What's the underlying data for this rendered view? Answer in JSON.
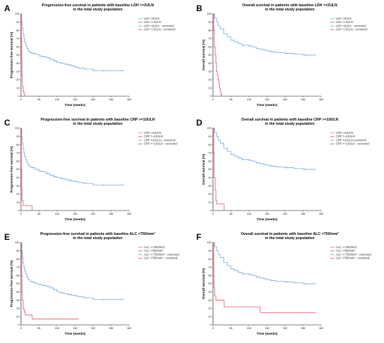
{
  "colors": {
    "blue": "#5b9bd5",
    "red": "#e8304a",
    "axis": "#000000"
  },
  "figure": {
    "x_ticks": [
      "0",
      "50",
      "100",
      "150",
      "200",
      "250",
      "300"
    ],
    "y_ticks": [
      "0",
      "10",
      "20",
      "30",
      "40",
      "50",
      "60",
      "70",
      "80",
      "90",
      "100"
    ]
  },
  "chart_data": [
    {
      "panel": "A",
      "type": "line",
      "title_lines": [
        "Progression-free survival in patients with baseline LDH >=2ULN",
        "in the total study population"
      ],
      "xlabel": "Time (weeks)",
      "ylabel": "Progression-free survival (%)",
      "xlim": [
        0,
        300
      ],
      "ylim": [
        0,
        100
      ],
      "legend": [
        "LDH <2ULN",
        "LDH >=2ULN",
        "LDH <2ULN - censored",
        "LDH >=2ULN - censored"
      ],
      "series": [
        {
          "name": "LDH <2ULN",
          "x": [
            0,
            2,
            4,
            6,
            8,
            10,
            13,
            16,
            20,
            25,
            30,
            40,
            50,
            60,
            70,
            80,
            90,
            100,
            110,
            120,
            130,
            140,
            150,
            160,
            175,
            200,
            225,
            250,
            275,
            285
          ],
          "y": [
            100,
            90,
            82,
            76,
            70,
            66,
            62,
            58,
            55,
            53,
            52,
            51,
            49,
            48,
            47,
            45,
            43,
            41,
            40,
            39,
            38,
            37,
            35,
            34,
            33,
            31,
            31,
            31,
            31,
            31
          ]
        },
        {
          "name": "LDH >=2ULN",
          "x": [
            0,
            1,
            2,
            3,
            4,
            6,
            8,
            10
          ],
          "y": [
            100,
            70,
            45,
            25,
            12,
            6,
            3,
            0
          ]
        }
      ]
    },
    {
      "panel": "B",
      "type": "line",
      "title_lines": [
        "Overall survival in patients with baseline LDH >=2ULN",
        "in the total study population"
      ],
      "xlabel": "Time (weeks)",
      "ylabel": "Overall survival (%)",
      "xlim": [
        0,
        300
      ],
      "ylim": [
        0,
        100
      ],
      "legend": [
        "LDH <2ULN",
        "LDH >=2ULN",
        "LDH <2ULN - censored",
        "LDH >=2ULN - censored"
      ],
      "series": [
        {
          "name": "LDH <2ULN",
          "x": [
            0,
            5,
            10,
            15,
            20,
            30,
            40,
            50,
            60,
            70,
            80,
            90,
            100,
            110,
            120,
            130,
            140,
            150,
            160,
            175,
            200,
            225,
            250,
            275,
            285
          ],
          "y": [
            100,
            95,
            90,
            85,
            82,
            76,
            72,
            68,
            66,
            64,
            62,
            62,
            61,
            60,
            58,
            57,
            56,
            55,
            54,
            53,
            52,
            51,
            50,
            50,
            50
          ]
        },
        {
          "name": "LDH >=2ULN",
          "x": [
            0,
            2,
            4,
            6,
            8,
            10,
            12,
            14,
            16,
            18,
            20,
            22,
            24
          ],
          "y": [
            100,
            80,
            60,
            50,
            40,
            30,
            25,
            20,
            15,
            10,
            6,
            2,
            0
          ]
        }
      ]
    },
    {
      "panel": "C",
      "type": "line",
      "title_lines": [
        "Progression-free survival in patients with baseline CRP >=10ULN",
        "in the total study population"
      ],
      "xlabel": "Time (weeks)",
      "ylabel": "Progression-free survival (%)",
      "xlim": [
        0,
        300
      ],
      "ylim": [
        0,
        100
      ],
      "legend": [
        "CRP <10ULN",
        "CRP >=10ULN",
        "CRP <10ULN - censored",
        "CRP >=10ULN - censored"
      ],
      "series": [
        {
          "name": "CRP <10ULN",
          "x": [
            0,
            2,
            4,
            6,
            8,
            10,
            13,
            16,
            20,
            25,
            30,
            40,
            50,
            60,
            70,
            80,
            90,
            100,
            110,
            120,
            130,
            140,
            150,
            160,
            175,
            200,
            225,
            250,
            275,
            285
          ],
          "y": [
            100,
            90,
            82,
            75,
            70,
            66,
            62,
            58,
            55,
            53,
            52,
            50,
            48,
            47,
            45,
            43,
            41,
            40,
            39,
            38,
            37,
            36,
            35,
            34,
            33,
            31,
            31,
            31,
            31,
            31
          ]
        },
        {
          "name": "CRP >=10ULN",
          "x": [
            0,
            1,
            2,
            3,
            6,
            30,
            31
          ],
          "y": [
            100,
            50,
            25,
            12,
            6,
            6,
            0
          ]
        }
      ]
    },
    {
      "panel": "D",
      "type": "line",
      "title_lines": [
        "Overall survival in patients with baseline CRP >=10ULN",
        "in the total study population"
      ],
      "xlabel": "Time (weeks)",
      "ylabel": "Overall survival (%)",
      "xlim": [
        0,
        300
      ],
      "ylim": [
        0,
        100
      ],
      "legend": [
        "CRP <10ULN",
        "CRP >=10ULN",
        "CRP <10ULN-censored",
        "CRP >=10ULN - censored"
      ],
      "series": [
        {
          "name": "CRP <10ULN",
          "x": [
            0,
            5,
            10,
            15,
            20,
            30,
            40,
            50,
            60,
            70,
            80,
            90,
            100,
            110,
            120,
            130,
            140,
            150,
            160,
            175,
            200,
            225,
            250,
            275,
            285
          ],
          "y": [
            100,
            95,
            90,
            85,
            82,
            76,
            72,
            68,
            66,
            64,
            62,
            62,
            61,
            60,
            58,
            57,
            56,
            55,
            54,
            53,
            52,
            51,
            50,
            50,
            50
          ]
        },
        {
          "name": "CRP >=10ULN",
          "x": [
            0,
            2,
            3,
            6,
            8,
            10,
            30,
            31
          ],
          "y": [
            100,
            70,
            40,
            25,
            12,
            8,
            8,
            0
          ]
        }
      ]
    },
    {
      "panel": "E",
      "type": "line",
      "title_lines": [
        "Progression-free survival in patients with baseline ALC <750/mm³",
        "in the total study population"
      ],
      "xlabel": "Time (weeks)",
      "ylabel": "Progression-free survival (%)",
      "xlim": [
        0,
        300
      ],
      "ylim": [
        0,
        100
      ],
      "legend": [
        "ALC >=750/mm³",
        "ALC <750/mm³",
        "ALC >=750/mm³ - censored",
        "ALC <750/mm³ - censored"
      ],
      "series": [
        {
          "name": "ALC >=750/mm³",
          "x": [
            0,
            2,
            4,
            6,
            8,
            10,
            13,
            16,
            20,
            25,
            30,
            40,
            50,
            60,
            70,
            80,
            90,
            100,
            110,
            120,
            130,
            140,
            150,
            160,
            175,
            200,
            225,
            250,
            275,
            285
          ],
          "y": [
            100,
            90,
            82,
            75,
            70,
            66,
            62,
            58,
            55,
            53,
            52,
            50,
            49,
            48,
            47,
            45,
            43,
            40,
            39,
            38,
            37,
            36,
            35,
            34,
            33,
            31,
            31,
            31,
            31,
            31
          ]
        },
        {
          "name": "ALC <750/mm³",
          "x": [
            0,
            2,
            3,
            4,
            6,
            8,
            10,
            12,
            30,
            31,
            160
          ],
          "y": [
            100,
            60,
            40,
            30,
            20,
            18,
            15,
            12,
            12,
            7,
            7
          ]
        }
      ]
    },
    {
      "panel": "F",
      "type": "line",
      "title_lines": [
        "Overall survival in patients with baseline ALC <750/mm³",
        "in the total study population"
      ],
      "xlabel": "Time (weeks)",
      "ylabel": "Overall survival (%)",
      "xlim": [
        0,
        300
      ],
      "ylim": [
        0,
        100
      ],
      "legend": [
        "ALC >=750/mm³",
        "ALC <750/mm³",
        "ALC >=750/mm³ - censored",
        "ALC <750/mm³ - censored"
      ],
      "series": [
        {
          "name": "ALC >=750/mm³",
          "x": [
            0,
            5,
            10,
            15,
            20,
            30,
            40,
            50,
            60,
            70,
            80,
            90,
            100,
            110,
            120,
            130,
            140,
            150,
            160,
            175,
            200,
            225,
            250,
            275,
            285
          ],
          "y": [
            100,
            95,
            90,
            85,
            82,
            76,
            72,
            68,
            66,
            64,
            62,
            62,
            61,
            60,
            58,
            57,
            56,
            55,
            54,
            53,
            52,
            51,
            50,
            50,
            50
          ]
        },
        {
          "name": "ALC <750/mm³",
          "x": [
            0,
            2,
            3,
            5,
            8,
            10,
            13,
            30,
            31,
            50,
            51,
            130,
            131,
            285
          ],
          "y": [
            100,
            60,
            45,
            35,
            30,
            30,
            30,
            30,
            22,
            22,
            22,
            22,
            15,
            15
          ]
        }
      ]
    }
  ]
}
